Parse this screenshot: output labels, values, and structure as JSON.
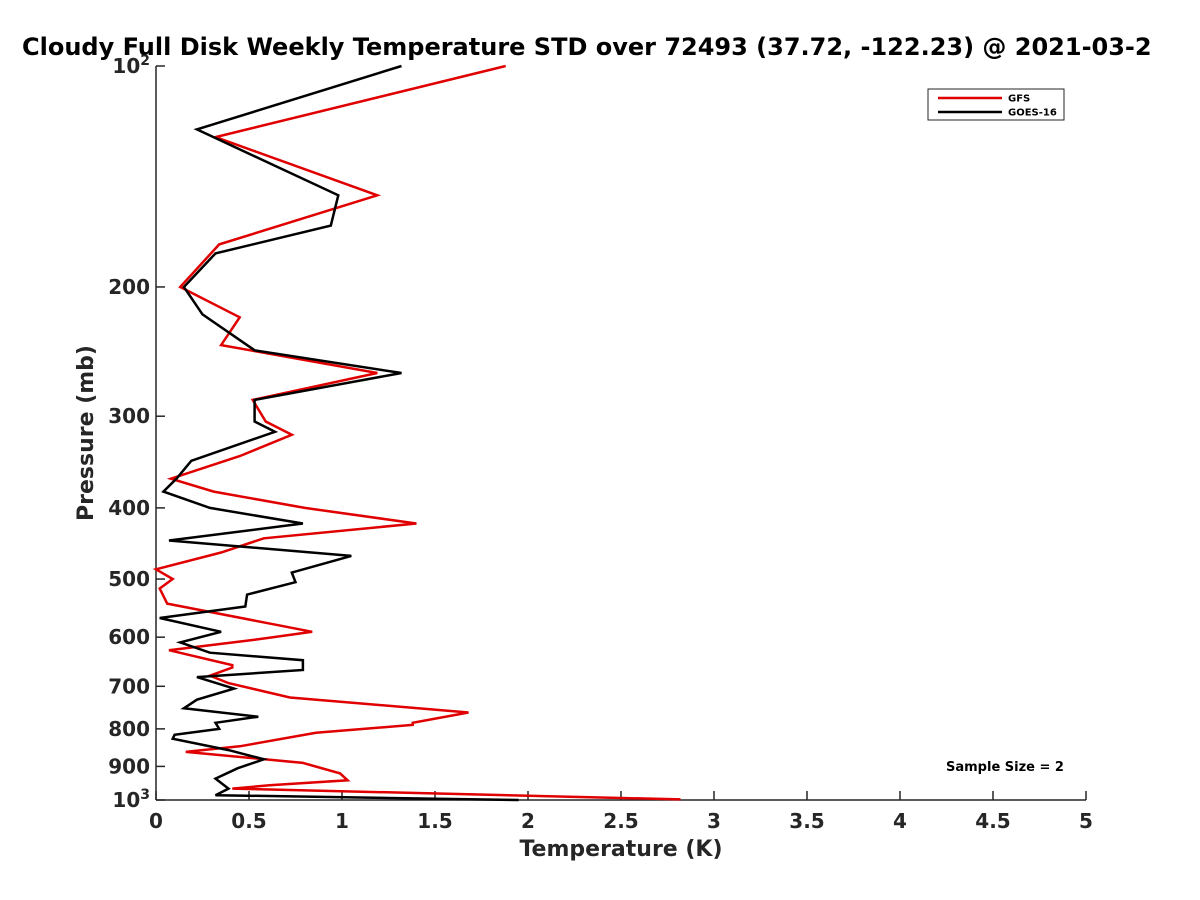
{
  "chart_data": {
    "type": "line",
    "title": "Cloudy Full Disk Weekly Temperature STD over 72493 (37.72, -122.23) @ 2021-03-2",
    "xlabel": "Temperature (K)",
    "ylabel": "Pressure (mb)",
    "xlim": [
      0,
      5
    ],
    "ylim": [
      1000,
      100
    ],
    "y_scale": "log",
    "y_reversed": true,
    "x_ticks": [
      0,
      0.5,
      1,
      1.5,
      2,
      2.5,
      3,
      3.5,
      4,
      4.5,
      5
    ],
    "x_tick_labels": [
      "0",
      "0.5",
      "1",
      "1.5",
      "2",
      "2.5",
      "3",
      "3.5",
      "4",
      "4.5",
      "5"
    ],
    "y_ticks": [
      {
        "value": 100,
        "base": "10",
        "exp": "2"
      },
      {
        "value": 200,
        "label": "200"
      },
      {
        "value": 300,
        "label": "300"
      },
      {
        "value": 400,
        "label": "400"
      },
      {
        "value": 500,
        "label": "500"
      },
      {
        "value": 600,
        "label": "600"
      },
      {
        "value": 700,
        "label": "700"
      },
      {
        "value": 800,
        "label": "800"
      },
      {
        "value": 900,
        "label": "900"
      },
      {
        "value": 1000,
        "base": "10",
        "exp": "3"
      }
    ],
    "legend_position": "top-right",
    "annotation": "Sample Size = 2",
    "grid": false,
    "series": [
      {
        "name": "GFS",
        "color": "#e00000",
        "points": [
          [
            1.88,
            100
          ],
          [
            0.32,
            125
          ],
          [
            1.19,
            150
          ],
          [
            0.34,
            175
          ],
          [
            0.13,
            200
          ],
          [
            0.45,
            220
          ],
          [
            0.35,
            240
          ],
          [
            1.19,
            262
          ],
          [
            0.52,
            285
          ],
          [
            0.59,
            305
          ],
          [
            0.73,
            318
          ],
          [
            0.45,
            340
          ],
          [
            0.08,
            365
          ],
          [
            0.31,
            380
          ],
          [
            0.8,
            400
          ],
          [
            1.4,
            420
          ],
          [
            0.58,
            440
          ],
          [
            0.35,
            460
          ],
          [
            0,
            485
          ],
          [
            0.09,
            500
          ],
          [
            0.02,
            515
          ],
          [
            0.06,
            540
          ],
          [
            0.84,
            590
          ],
          [
            0.53,
            605
          ],
          [
            0.07,
            625
          ],
          [
            0.41,
            655
          ],
          [
            0.41,
            660
          ],
          [
            0.29,
            677
          ],
          [
            0.39,
            693
          ],
          [
            0.72,
            725
          ],
          [
            1.68,
            760
          ],
          [
            1.38,
            785
          ],
          [
            1.38,
            790
          ],
          [
            0.86,
            810
          ],
          [
            0.45,
            845
          ],
          [
            0.16,
            860
          ],
          [
            0.79,
            890
          ],
          [
            0.99,
            920
          ],
          [
            1.03,
            940
          ],
          [
            0.61,
            955
          ],
          [
            0.41,
            965
          ],
          [
            2.82,
            998
          ]
        ]
      },
      {
        "name": "GOES-16",
        "color": "#000000",
        "points": [
          [
            1.32,
            100
          ],
          [
            0.22,
            122
          ],
          [
            0.98,
            150
          ],
          [
            0.94,
            165
          ],
          [
            0.32,
            180
          ],
          [
            0.15,
            200
          ],
          [
            0.25,
            218
          ],
          [
            0.53,
            244
          ],
          [
            1.32,
            262
          ],
          [
            0.53,
            285
          ],
          [
            0.53,
            305
          ],
          [
            0.64,
            315
          ],
          [
            0.19,
            345
          ],
          [
            0.11,
            365
          ],
          [
            0.04,
            380
          ],
          [
            0.29,
            400
          ],
          [
            0.79,
            420
          ],
          [
            0.07,
            443
          ],
          [
            1.05,
            465
          ],
          [
            0.73,
            490
          ],
          [
            0.75,
            505
          ],
          [
            0.49,
            525
          ],
          [
            0.48,
            545
          ],
          [
            0.02,
            565
          ],
          [
            0.35,
            590
          ],
          [
            0.13,
            610
          ],
          [
            0.29,
            630
          ],
          [
            0.79,
            645
          ],
          [
            0.79,
            665
          ],
          [
            0.22,
            680
          ],
          [
            0.42,
            705
          ],
          [
            0.22,
            730
          ],
          [
            0.15,
            750
          ],
          [
            0.55,
            770
          ],
          [
            0.32,
            785
          ],
          [
            0.34,
            800
          ],
          [
            0.1,
            815
          ],
          [
            0.09,
            825
          ],
          [
            0.39,
            855
          ],
          [
            0.58,
            880
          ],
          [
            0.44,
            905
          ],
          [
            0.32,
            935
          ],
          [
            0.39,
            965
          ],
          [
            0.32,
            985
          ],
          [
            1.95,
            1000
          ]
        ]
      }
    ]
  }
}
